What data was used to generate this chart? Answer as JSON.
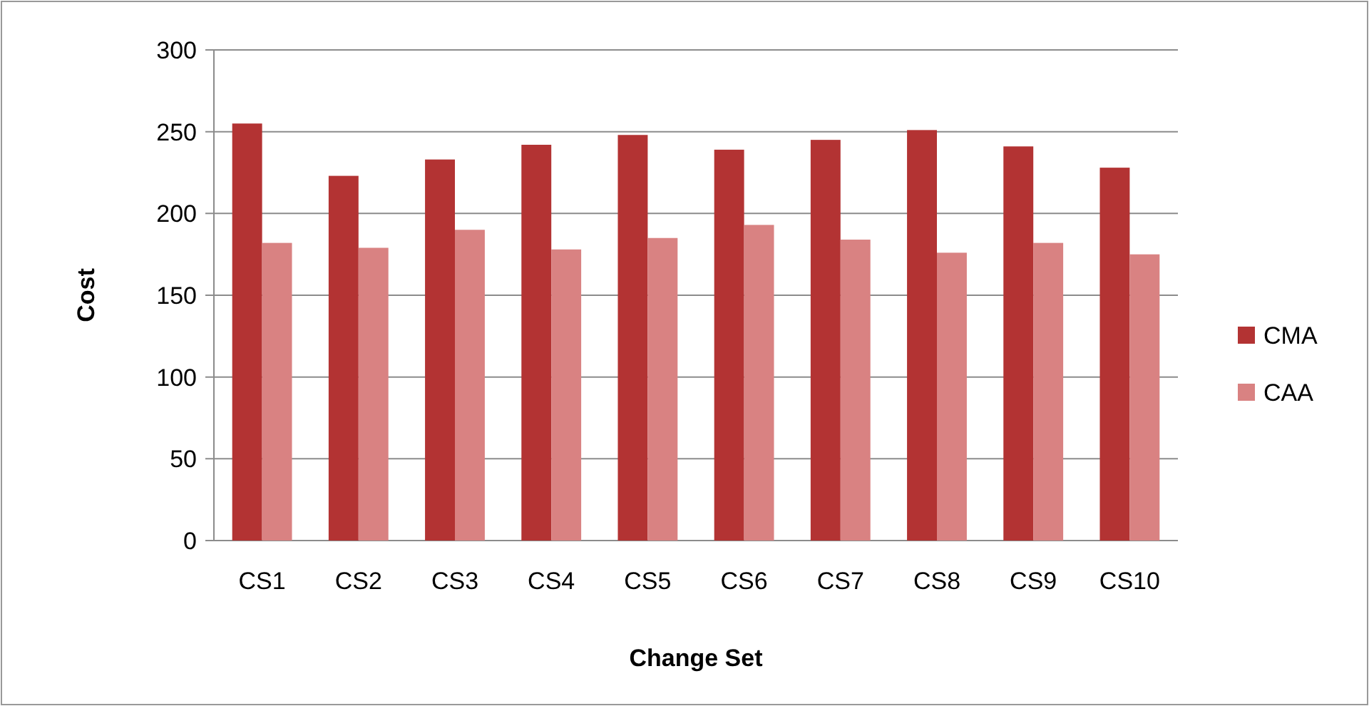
{
  "chart_data": {
    "type": "bar",
    "xlabel": "Change Set",
    "ylabel": "Cost",
    "categories": [
      "CS1",
      "CS2",
      "CS3",
      "CS4",
      "CS5",
      "CS6",
      "CS7",
      "CS8",
      "CS9",
      "CS10"
    ],
    "series": [
      {
        "name": "CMA",
        "color": "#b33333",
        "values": [
          255,
          223,
          233,
          242,
          248,
          239,
          245,
          251,
          241,
          228
        ]
      },
      {
        "name": "CAA",
        "color": "#d98282",
        "values": [
          182,
          179,
          190,
          178,
          185,
          193,
          184,
          176,
          182,
          175
        ]
      }
    ],
    "ylim": [
      0,
      300
    ],
    "yticks": [
      0,
      50,
      100,
      150,
      200,
      250,
      300
    ],
    "grid": "y",
    "legend": "right"
  }
}
